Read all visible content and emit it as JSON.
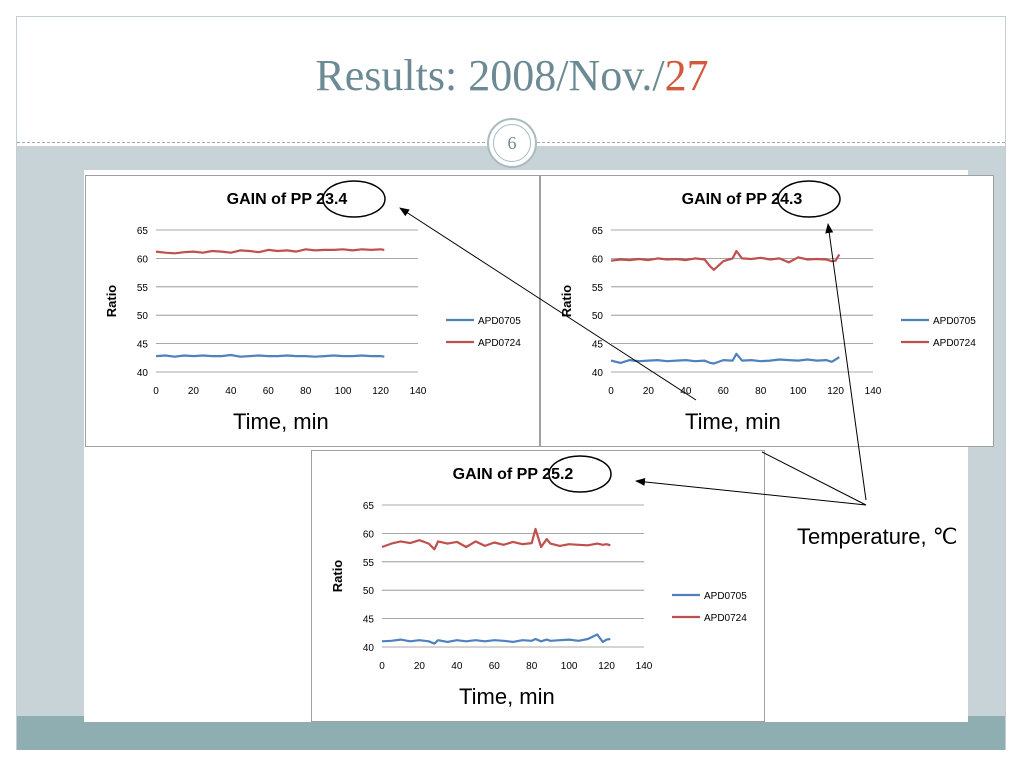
{
  "slide": {
    "title_prefix": "Results: 2008/Nov./",
    "title_accent": "27",
    "page_number": "6",
    "temperature_label": "Temperature, ℃",
    "time_label": "Time, min"
  },
  "colors": {
    "series_apd0705": "#4f81bd",
    "series_apd0724": "#c0504d",
    "title_text": "#6b8a93",
    "title_accent": "#d1593c"
  },
  "chart_data": [
    {
      "type": "line",
      "title": "GAIN of PP 23.4",
      "xlabel": "",
      "ylabel": "Ratio",
      "xlim": [
        0,
        140
      ],
      "ylim": [
        40,
        65
      ],
      "xticks": [
        0,
        20,
        40,
        60,
        80,
        100,
        120,
        140
      ],
      "yticks": [
        40,
        45,
        50,
        55,
        60,
        65
      ],
      "grid": "horizontal",
      "legend": "right",
      "x": [
        0,
        5,
        10,
        15,
        20,
        25,
        30,
        35,
        40,
        45,
        50,
        55,
        60,
        65,
        70,
        75,
        80,
        85,
        90,
        95,
        100,
        105,
        110,
        115,
        120,
        122
      ],
      "series": [
        {
          "name": "APD0705",
          "values": [
            42.8,
            42.9,
            42.7,
            42.9,
            42.8,
            42.9,
            42.8,
            42.8,
            43.0,
            42.7,
            42.8,
            42.9,
            42.8,
            42.8,
            42.9,
            42.8,
            42.8,
            42.7,
            42.8,
            42.9,
            42.8,
            42.8,
            42.9,
            42.8,
            42.8,
            42.7
          ]
        },
        {
          "name": "APD0724",
          "values": [
            61.2,
            61.0,
            60.9,
            61.1,
            61.2,
            61.0,
            61.3,
            61.2,
            61.0,
            61.4,
            61.3,
            61.1,
            61.5,
            61.3,
            61.4,
            61.2,
            61.6,
            61.4,
            61.5,
            61.5,
            61.6,
            61.4,
            61.6,
            61.5,
            61.6,
            61.5
          ]
        }
      ]
    },
    {
      "type": "line",
      "title": "GAIN of PP 24.3",
      "xlabel": "",
      "ylabel": "Ratio",
      "xlim": [
        0,
        140
      ],
      "ylim": [
        40,
        65
      ],
      "xticks": [
        0,
        20,
        40,
        60,
        80,
        100,
        120,
        140
      ],
      "yticks": [
        40,
        45,
        50,
        55,
        60,
        65
      ],
      "grid": "horizontal",
      "legend": "right",
      "x": [
        0,
        5,
        10,
        15,
        20,
        25,
        30,
        35,
        40,
        45,
        50,
        53,
        55,
        60,
        65,
        67,
        70,
        75,
        80,
        85,
        90,
        95,
        100,
        105,
        110,
        115,
        118,
        120,
        122
      ],
      "series": [
        {
          "name": "APD0705",
          "values": [
            42.0,
            41.6,
            42.1,
            41.9,
            42.0,
            42.1,
            41.9,
            42.0,
            42.1,
            41.9,
            42.0,
            41.6,
            41.5,
            42.1,
            42.0,
            43.2,
            42.0,
            42.1,
            41.9,
            42.0,
            42.2,
            42.1,
            42.0,
            42.2,
            42.0,
            42.1,
            41.8,
            42.2,
            42.6
          ]
        },
        {
          "name": "APD0724",
          "values": [
            59.6,
            59.8,
            59.7,
            59.9,
            59.7,
            60.0,
            59.8,
            59.9,
            59.7,
            60.0,
            59.8,
            58.6,
            58.0,
            59.5,
            60.0,
            61.3,
            60.0,
            59.9,
            60.1,
            59.8,
            60.0,
            59.3,
            60.2,
            59.8,
            59.9,
            59.8,
            59.5,
            59.6,
            60.7
          ]
        }
      ]
    },
    {
      "type": "line",
      "title": "GAIN of PP 25.2",
      "xlabel": "",
      "ylabel": "Ratio",
      "xlim": [
        0,
        140
      ],
      "ylim": [
        40,
        65
      ],
      "xticks": [
        0,
        20,
        40,
        60,
        80,
        100,
        120,
        140
      ],
      "yticks": [
        40,
        45,
        50,
        55,
        60,
        65
      ],
      "grid": "horizontal",
      "legend": "right",
      "x": [
        0,
        5,
        10,
        15,
        20,
        25,
        28,
        30,
        35,
        40,
        45,
        50,
        55,
        60,
        65,
        70,
        75,
        80,
        82,
        85,
        88,
        90,
        95,
        100,
        105,
        110,
        115,
        118,
        120,
        122
      ],
      "series": [
        {
          "name": "APD0705",
          "values": [
            41.0,
            41.1,
            41.3,
            41.0,
            41.2,
            41.0,
            40.6,
            41.2,
            40.9,
            41.2,
            41.0,
            41.2,
            41.0,
            41.2,
            41.1,
            40.9,
            41.2,
            41.1,
            41.4,
            41.0,
            41.3,
            41.1,
            41.2,
            41.3,
            41.1,
            41.4,
            42.2,
            40.9,
            41.3,
            41.4
          ]
        },
        {
          "name": "APD0724",
          "values": [
            57.6,
            58.2,
            58.6,
            58.3,
            58.8,
            58.2,
            57.2,
            58.6,
            58.2,
            58.5,
            57.6,
            58.6,
            57.8,
            58.4,
            58.0,
            58.5,
            58.1,
            58.3,
            60.8,
            57.6,
            59.0,
            58.2,
            57.8,
            58.1,
            58.0,
            57.9,
            58.2,
            58.0,
            58.1,
            57.9
          ]
        }
      ]
    }
  ]
}
